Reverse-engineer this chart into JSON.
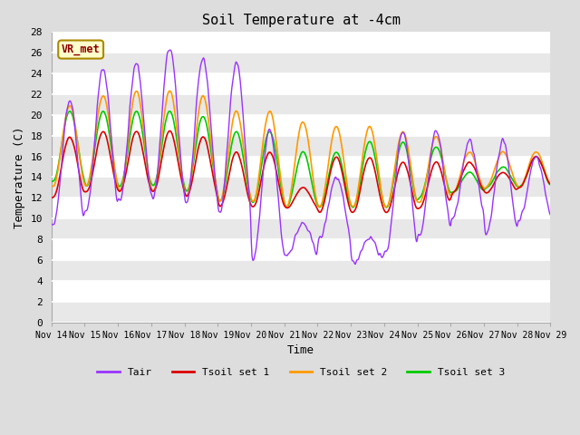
{
  "title": "Soil Temperature at -4cm",
  "xlabel": "Time",
  "ylabel": "Temperature (C)",
  "ylim": [
    0,
    28
  ],
  "yticks": [
    0,
    2,
    4,
    6,
    8,
    10,
    12,
    14,
    16,
    18,
    20,
    22,
    24,
    26,
    28
  ],
  "xtick_labels": [
    "Nov 14",
    "Nov 15",
    "Nov 16",
    "Nov 17",
    "Nov 18",
    "Nov 19",
    "Nov 20",
    "Nov 21",
    "Nov 22",
    "Nov 23",
    "Nov 24",
    "Nov 25",
    "Nov 26",
    "Nov 27",
    "Nov 28",
    "Nov 29"
  ],
  "n_days": 15,
  "pts_per_day": 48,
  "colors": {
    "Tair": "#9933ff",
    "Tsoil1": "#dd0000",
    "Tsoil2": "#ff9900",
    "Tsoil3": "#00cc00"
  },
  "linewidths": {
    "Tair": 1.0,
    "Tsoil1": 1.2,
    "Tsoil2": 1.2,
    "Tsoil3": 1.2
  },
  "legend_labels": [
    "Tair",
    "Tsoil set 1",
    "Tsoil set 2",
    "Tsoil set 3"
  ],
  "annotation_text": "VR_met",
  "bg_color": "#dddddd",
  "plot_bg_color": "#ffffff",
  "band_color": "#e8e8e8",
  "font": "monospace",
  "figsize": [
    6.4,
    4.8
  ],
  "dpi": 100
}
